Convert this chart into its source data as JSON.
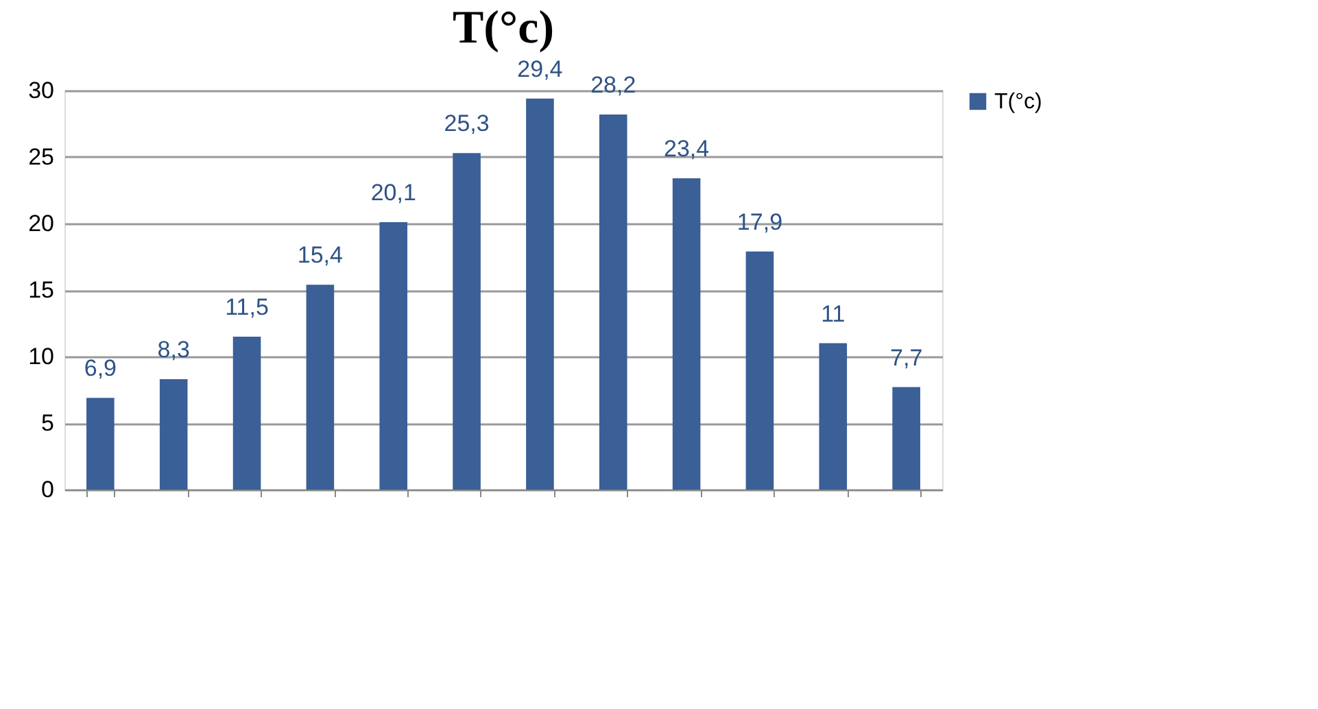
{
  "chart_data": {
    "type": "bar",
    "title": "T(°c)",
    "categories": [
      null,
      null,
      null,
      null,
      null,
      null,
      null,
      null,
      null,
      null,
      null,
      null
    ],
    "series": [
      {
        "name": "T(°c)",
        "color": "#3b5f97",
        "values": [
          6.9,
          8.3,
          11.5,
          15.4,
          20.1,
          25.3,
          29.4,
          28.2,
          23.4,
          17.9,
          11,
          7.7
        ],
        "value_labels": [
          "6,9",
          "8,3",
          "11,5",
          "15,4",
          "20,1",
          "25,3",
          "29,4",
          "28,2",
          "23,4",
          "17,9",
          "11",
          "7,7"
        ]
      }
    ],
    "ylim": [
      0,
      30
    ],
    "yticks": [
      0,
      5,
      10,
      15,
      20,
      25,
      30
    ],
    "grid": "y",
    "legend": "right",
    "tick_labels": "y"
  }
}
